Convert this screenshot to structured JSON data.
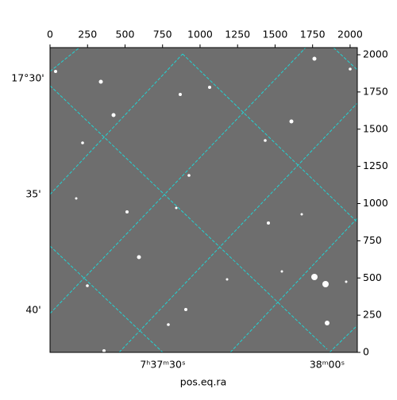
{
  "chart_data": {
    "type": "image",
    "xlim": [
      0,
      2048
    ],
    "ylim": [
      0,
      2048
    ],
    "xticks": [
      0,
      250,
      500,
      750,
      1000,
      1250,
      1500,
      1750,
      2000
    ],
    "yticks": [
      0,
      250,
      500,
      750,
      1000,
      1250,
      1500,
      1750,
      2000
    ],
    "dec_tick_labels": [
      "17°30'",
      "35'",
      "40'"
    ],
    "ra_tick_labels": [
      "7ʰ37ᵐ30ˢ",
      "38ᵐ00ˢ"
    ],
    "xlabel": "pos.eq.ra",
    "grid_color": "#22d3d3"
  }
}
